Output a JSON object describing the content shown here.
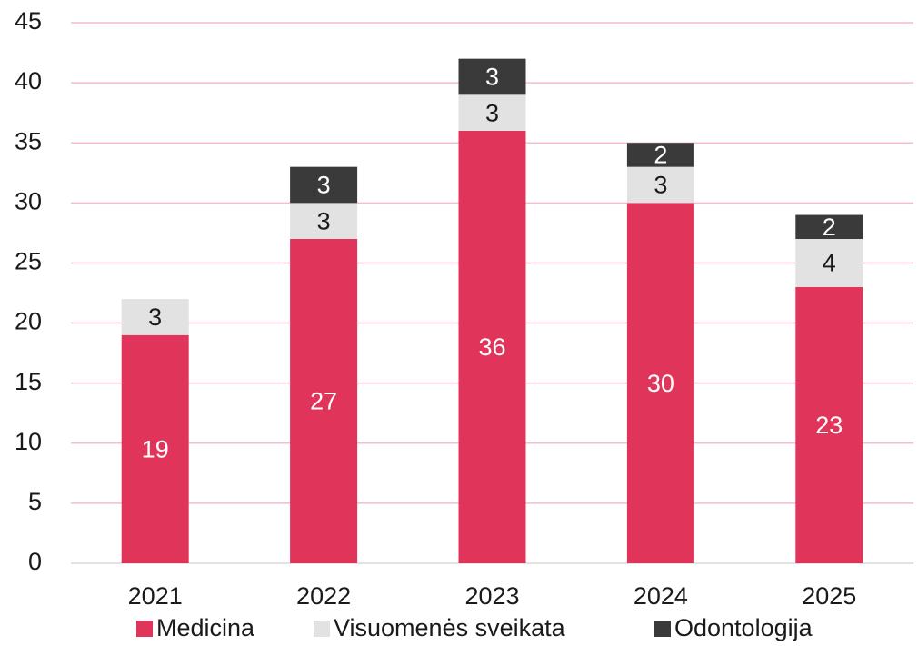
{
  "chart_data": {
    "type": "stacked_bar",
    "categories": [
      "2021",
      "2022",
      "2023",
      "2024",
      "2025"
    ],
    "series": [
      {
        "name": "Medicina",
        "color": "#e0345a",
        "values": [
          19,
          27,
          36,
          30,
          23
        ]
      },
      {
        "name": "Visuomenės sveikata",
        "color": "#e2e2e2",
        "values": [
          3,
          3,
          3,
          3,
          4
        ]
      },
      {
        "name": "Odontologija",
        "color": "#3a3a3a",
        "values": [
          null,
          3,
          3,
          2,
          2
        ]
      }
    ],
    "ylim": [
      0,
      45
    ],
    "yticks": [
      0,
      5,
      10,
      15,
      20,
      25,
      30,
      35,
      40,
      45
    ],
    "grid": true,
    "legend": "bottom"
  }
}
